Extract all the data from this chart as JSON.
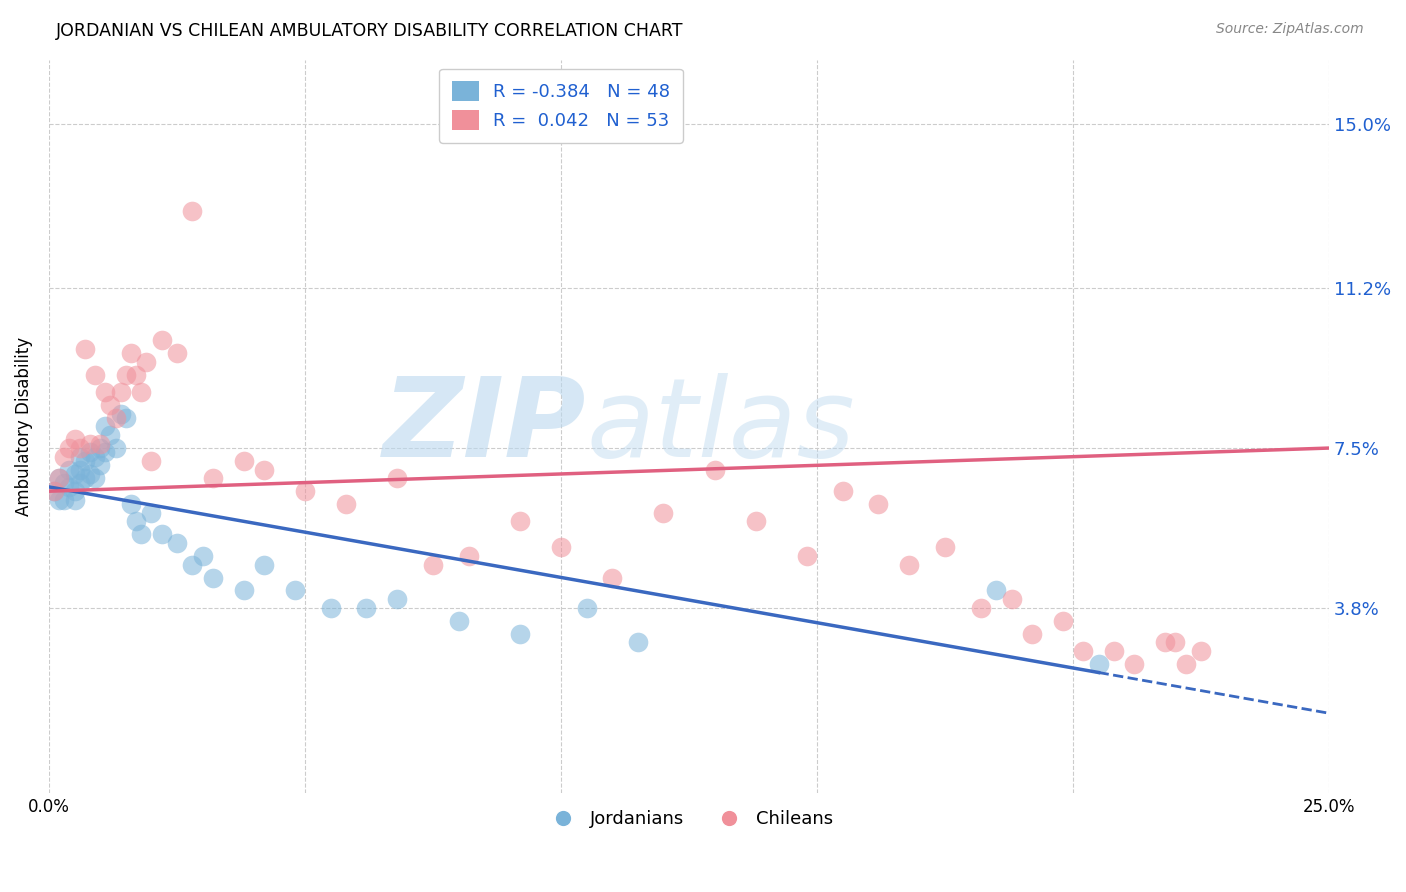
{
  "title": "JORDANIAN VS CHILEAN AMBULATORY DISABILITY CORRELATION CHART",
  "source": "Source: ZipAtlas.com",
  "ylabel": "Ambulatory Disability",
  "xlim": [
    0.0,
    0.25
  ],
  "ylim": [
    -0.005,
    0.165
  ],
  "ytick_labels_right": [
    "15.0%",
    "11.2%",
    "7.5%",
    "3.8%"
  ],
  "ytick_vals_right": [
    0.15,
    0.112,
    0.075,
    0.038
  ],
  "background_color": "#ffffff",
  "grid_color": "#cccccc",
  "watermark_zip": "ZIP",
  "watermark_atlas": "atlas",
  "watermark_color_zip": "#bbd8ef",
  "watermark_color_atlas": "#bbd8ef",
  "jordanian_color": "#7ab3d9",
  "chilean_color": "#f0909a",
  "jordanian_line_color": "#3a68c0",
  "chilean_line_color": "#e06080",
  "legend_jordan_label": "R = -0.384   N = 48",
  "legend_chile_label": "R =  0.042   N = 53",
  "legend_color": "#2060d0",
  "jordan_line_x0": 0.0,
  "jordan_line_y0": 0.066,
  "jordan_line_x1": 0.205,
  "jordan_line_y1": 0.023,
  "jordan_line_xdash_end": 0.25,
  "chile_line_x0": 0.0,
  "chile_line_y0": 0.065,
  "chile_line_x1": 0.25,
  "chile_line_y1": 0.075,
  "jordanian_points_x": [
    0.001,
    0.002,
    0.002,
    0.003,
    0.003,
    0.004,
    0.004,
    0.005,
    0.005,
    0.005,
    0.006,
    0.006,
    0.006,
    0.007,
    0.007,
    0.008,
    0.008,
    0.009,
    0.009,
    0.01,
    0.01,
    0.011,
    0.011,
    0.012,
    0.013,
    0.014,
    0.015,
    0.016,
    0.017,
    0.018,
    0.02,
    0.022,
    0.025,
    0.028,
    0.03,
    0.032,
    0.038,
    0.042,
    0.048,
    0.055,
    0.062,
    0.068,
    0.08,
    0.092,
    0.105,
    0.115,
    0.185,
    0.205
  ],
  "jordanian_points_y": [
    0.065,
    0.068,
    0.063,
    0.067,
    0.063,
    0.07,
    0.066,
    0.069,
    0.065,
    0.063,
    0.073,
    0.07,
    0.067,
    0.072,
    0.068,
    0.074,
    0.069,
    0.073,
    0.068,
    0.075,
    0.071,
    0.08,
    0.074,
    0.078,
    0.075,
    0.083,
    0.082,
    0.062,
    0.058,
    0.055,
    0.06,
    0.055,
    0.053,
    0.048,
    0.05,
    0.045,
    0.042,
    0.048,
    0.042,
    0.038,
    0.038,
    0.04,
    0.035,
    0.032,
    0.038,
    0.03,
    0.042,
    0.025
  ],
  "chilean_points_x": [
    0.001,
    0.002,
    0.003,
    0.004,
    0.005,
    0.006,
    0.007,
    0.008,
    0.009,
    0.01,
    0.011,
    0.012,
    0.013,
    0.014,
    0.015,
    0.016,
    0.017,
    0.018,
    0.019,
    0.02,
    0.022,
    0.025,
    0.028,
    0.032,
    0.038,
    0.042,
    0.05,
    0.058,
    0.068,
    0.075,
    0.082,
    0.092,
    0.1,
    0.11,
    0.12,
    0.13,
    0.138,
    0.148,
    0.155,
    0.162,
    0.168,
    0.175,
    0.182,
    0.188,
    0.192,
    0.198,
    0.202,
    0.208,
    0.212,
    0.218,
    0.22,
    0.222,
    0.225
  ],
  "chilean_points_y": [
    0.065,
    0.068,
    0.073,
    0.075,
    0.077,
    0.075,
    0.098,
    0.076,
    0.092,
    0.076,
    0.088,
    0.085,
    0.082,
    0.088,
    0.092,
    0.097,
    0.092,
    0.088,
    0.095,
    0.072,
    0.1,
    0.097,
    0.13,
    0.068,
    0.072,
    0.07,
    0.065,
    0.062,
    0.068,
    0.048,
    0.05,
    0.058,
    0.052,
    0.045,
    0.06,
    0.07,
    0.058,
    0.05,
    0.065,
    0.062,
    0.048,
    0.052,
    0.038,
    0.04,
    0.032,
    0.035,
    0.028,
    0.028,
    0.025,
    0.03,
    0.03,
    0.025,
    0.028
  ]
}
